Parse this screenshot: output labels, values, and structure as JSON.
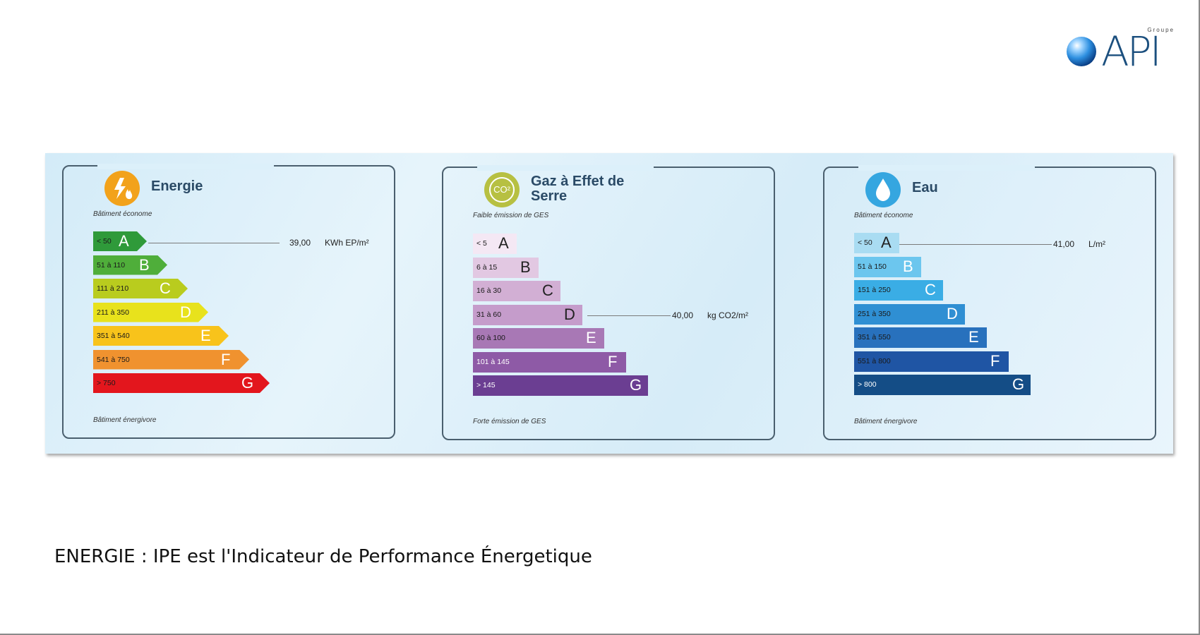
{
  "logo": {
    "groupe": "Groupe",
    "text": "API"
  },
  "panels": [
    {
      "title": "Energie",
      "note_top": "Bâtiment économe",
      "note_bottom": "Bâtiment énergivore",
      "marker": {
        "value": "39,00",
        "unit": "KWh EP/m²",
        "class": "A"
      },
      "classes": [
        {
          "letter": "A",
          "range": "< 50",
          "color": "#2f9a3a"
        },
        {
          "letter": "B",
          "range": "51 à 110",
          "color": "#4fae3a"
        },
        {
          "letter": "C",
          "range": "111 à 210",
          "color": "#b9cc1e"
        },
        {
          "letter": "D",
          "range": "211 à 350",
          "color": "#e8e21c"
        },
        {
          "letter": "E",
          "range": "351 à 540",
          "color": "#f8c31b"
        },
        {
          "letter": "F",
          "range": "541 à 750",
          "color": "#f0922f"
        },
        {
          "letter": "G",
          "range": "> 750",
          "color": "#e3161d"
        }
      ]
    },
    {
      "title_line1": "Gaz à Effet de",
      "title_line2": "Serre",
      "icon_text": "CO²",
      "note_top": "Faible émission de GES",
      "note_bottom": "Forte émission de GES",
      "marker": {
        "value": "40,00",
        "unit": "kg CO2/m²",
        "class": "D"
      },
      "classes": [
        {
          "letter": "A",
          "range": "< 5",
          "color": "#f4e8f4"
        },
        {
          "letter": "B",
          "range": "6  à 15",
          "color": "#e2c8e2"
        },
        {
          "letter": "C",
          "range": "16  à 30",
          "color": "#d2afd4"
        },
        {
          "letter": "D",
          "range": "31  à 60",
          "color": "#c59ccb"
        },
        {
          "letter": "E",
          "range": "60  à 100",
          "color": "#a878b5"
        },
        {
          "letter": "F",
          "range": "101 à 145",
          "color": "#8e5aa6"
        },
        {
          "letter": "G",
          "range": "> 145",
          "color": "#6b3e92"
        }
      ]
    },
    {
      "title": "Eau",
      "note_top": "Bâtiment économe",
      "note_bottom": "Bâtiment énergivore",
      "marker": {
        "value": "41,00",
        "unit": "L/m²",
        "class": "A"
      },
      "classes": [
        {
          "letter": "A",
          "range": "< 50",
          "color": "#a9dcf2"
        },
        {
          "letter": "B",
          "range": "51 à 150",
          "color": "#6cc6ee"
        },
        {
          "letter": "C",
          "range": "151 à 250",
          "color": "#3aade5"
        },
        {
          "letter": "D",
          "range": "251 à 350",
          "color": "#2f8fd3"
        },
        {
          "letter": "E",
          "range": "351 à 550",
          "color": "#2871bd"
        },
        {
          "letter": "F",
          "range": "551 à 800",
          "color": "#1f55a4"
        },
        {
          "letter": "G",
          "range": "> 800",
          "color": "#144d86"
        }
      ]
    }
  ],
  "caption": "ENERGIE : IPE est l'Indicateur de Performance Énergetique",
  "colors": {
    "title": "#2a4a66",
    "energy_icon": "#f2a21b",
    "ges_icon": "#b7c042",
    "water_icon": "#35a6e0"
  }
}
